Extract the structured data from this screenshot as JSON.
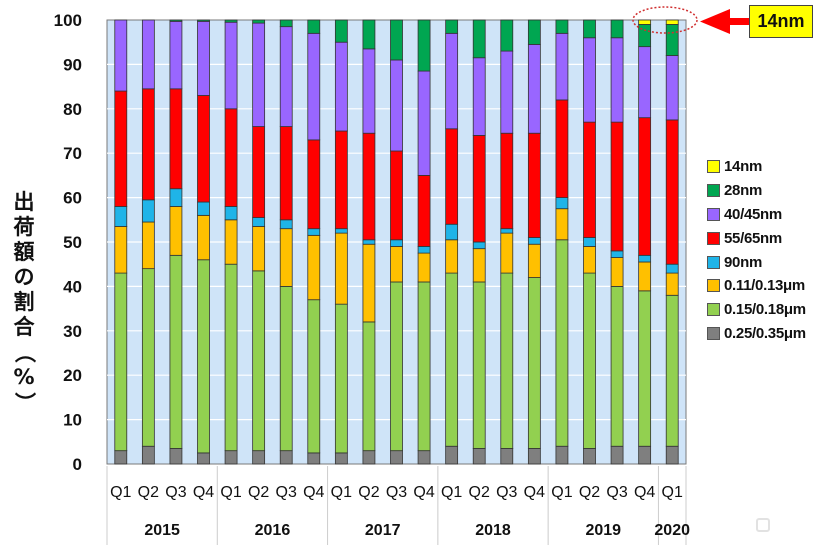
{
  "chart_data": {
    "type": "bar",
    "stacked": true,
    "title": "",
    "ylabel": "出荷額の割合（%）",
    "xlabel": "",
    "ylim": [
      0,
      100
    ],
    "yticks": [
      0,
      10,
      20,
      30,
      40,
      50,
      60,
      70,
      80,
      90,
      100
    ],
    "grid": true,
    "legend_position": "right",
    "categories": [
      "Q1",
      "Q2",
      "Q3",
      "Q4",
      "Q1",
      "Q2",
      "Q3",
      "Q4",
      "Q1",
      "Q2",
      "Q3",
      "Q4",
      "Q1",
      "Q2",
      "Q3",
      "Q4",
      "Q1",
      "Q2",
      "Q3",
      "Q4",
      "Q1"
    ],
    "year_groups": [
      {
        "label": "2015",
        "count": 4
      },
      {
        "label": "2016",
        "count": 4
      },
      {
        "label": "2017",
        "count": 4
      },
      {
        "label": "2018",
        "count": 4
      },
      {
        "label": "2019",
        "count": 4
      },
      {
        "label": "2020",
        "count": 1
      }
    ],
    "series": [
      {
        "name": "0.25/0.35μm",
        "color": "#7f7f7f",
        "values": [
          3,
          4,
          3.5,
          2.5,
          3,
          3,
          3,
          2.5,
          2.5,
          3,
          3,
          3,
          4,
          3.5,
          3.5,
          3.5,
          4,
          3.5,
          4,
          4,
          4
        ]
      },
      {
        "name": "0.15/0.18μm",
        "color": "#92d050",
        "values": [
          40,
          40,
          43.5,
          43.5,
          42,
          40.5,
          37,
          34.5,
          33.5,
          29,
          38,
          38,
          39,
          37.5,
          39.5,
          38.5,
          46.5,
          39.5,
          36,
          35,
          34
        ]
      },
      {
        "name": "0.11/0.13μm",
        "color": "#ffc000",
        "values": [
          10.5,
          10.5,
          11,
          10,
          10,
          10,
          13,
          14.5,
          16,
          17.5,
          8,
          6.5,
          7.5,
          7.5,
          9,
          7.5,
          7,
          6,
          6.5,
          6.5,
          5
        ]
      },
      {
        "name": "90nm",
        "color": "#1fb4e8",
        "values": [
          4.5,
          5,
          4,
          3,
          3,
          2,
          2,
          1.5,
          1,
          1,
          1.5,
          1.5,
          3.5,
          1.5,
          1,
          1.5,
          2.5,
          2,
          1.5,
          1.5,
          2
        ]
      },
      {
        "name": "55/65nm",
        "color": "#ff0000",
        "values": [
          26,
          25,
          22.5,
          24,
          22,
          20.5,
          21,
          20,
          22,
          24,
          20,
          16,
          21.5,
          24,
          21.5,
          23.5,
          22,
          26,
          29,
          31,
          32.5
        ]
      },
      {
        "name": "40/45nm",
        "color": "#9966ff",
        "values": [
          16,
          15.5,
          15.2,
          16.7,
          19.5,
          23.3,
          22.5,
          24,
          20,
          19,
          20.5,
          23.5,
          21.5,
          17.5,
          18.5,
          20,
          15,
          19,
          19,
          16,
          14.5
        ]
      },
      {
        "name": "28nm",
        "color": "#00a651",
        "values": [
          0,
          0,
          0.3,
          0.3,
          0.5,
          0.7,
          1.5,
          3,
          5,
          6.5,
          9,
          11.5,
          3,
          8.5,
          7,
          5.5,
          3,
          4,
          4,
          5,
          7
        ]
      },
      {
        "name": "14nm",
        "color": "#ffff00",
        "values": [
          0,
          0,
          0,
          0,
          0,
          0,
          0,
          0,
          0,
          0,
          0,
          0,
          0,
          0,
          0,
          0,
          0,
          0,
          0,
          1,
          1
        ]
      }
    ],
    "annotation": {
      "text": "14nm",
      "target": "2019 Q4 - 2020 Q1 top segments"
    }
  }
}
